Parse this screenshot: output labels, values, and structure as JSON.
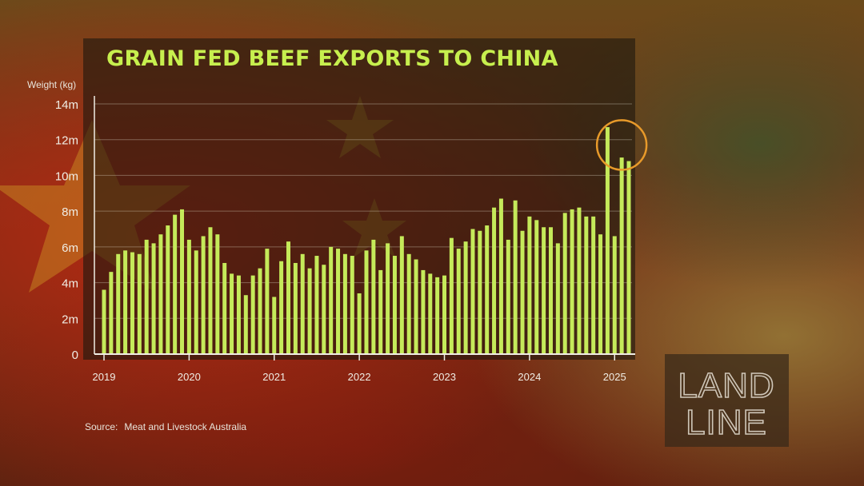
{
  "title": "GRAIN FED BEEF EXPORTS TO CHINA",
  "source": {
    "label": "Source:",
    "text": "Meat and Livestock Australia"
  },
  "logo": {
    "line1": "LAND",
    "line2": "LINE"
  },
  "colors": {
    "accent": "#c7ef4e",
    "bar": "#c5ea5a",
    "highlight_circle": "#e89a2a"
  },
  "chart_data": {
    "type": "bar",
    "title": "GRAIN FED BEEF EXPORTS TO CHINA",
    "ylabel": "Weight (kg)",
    "xlabel": "",
    "ylim": [
      0,
      14000000
    ],
    "yticks": [
      {
        "value": 0,
        "label": "0"
      },
      {
        "value": 2000000,
        "label": "2m"
      },
      {
        "value": 4000000,
        "label": "4m"
      },
      {
        "value": 6000000,
        "label": "6m"
      },
      {
        "value": 8000000,
        "label": "8m"
      },
      {
        "value": 10000000,
        "label": "10m"
      },
      {
        "value": 12000000,
        "label": "12m"
      },
      {
        "value": 14000000,
        "label": "14m"
      }
    ],
    "xticks": [
      {
        "index": 0,
        "label": "2019"
      },
      {
        "index": 12,
        "label": "2020"
      },
      {
        "index": 24,
        "label": "2021"
      },
      {
        "index": 36,
        "label": "2022"
      },
      {
        "index": 48,
        "label": "2023"
      },
      {
        "index": 60,
        "label": "2024"
      },
      {
        "index": 72,
        "label": "2025"
      }
    ],
    "grid": "horizontal",
    "highlight": {
      "indices": [
        72,
        73,
        74
      ],
      "style": "circle"
    },
    "values": [
      3600000,
      4600000,
      5600000,
      5800000,
      5700000,
      5600000,
      6400000,
      6200000,
      6700000,
      7200000,
      7800000,
      8100000,
      6400000,
      5800000,
      6600000,
      7100000,
      6700000,
      5100000,
      4500000,
      4400000,
      3300000,
      4400000,
      4800000,
      5900000,
      3200000,
      5200000,
      6300000,
      5100000,
      5600000,
      4800000,
      5500000,
      5000000,
      6000000,
      5900000,
      5600000,
      5500000,
      3400000,
      5800000,
      6400000,
      4700000,
      6200000,
      5500000,
      6600000,
      5600000,
      5300000,
      4700000,
      4500000,
      4300000,
      4400000,
      6500000,
      5900000,
      6300000,
      7000000,
      6900000,
      7200000,
      8200000,
      8700000,
      6400000,
      8600000,
      6900000,
      7700000,
      7500000,
      7100000,
      7100000,
      6200000,
      7900000,
      8100000,
      8200000,
      7700000,
      7700000,
      6700000,
      12700000,
      6600000,
      11000000,
      10800000
    ]
  }
}
